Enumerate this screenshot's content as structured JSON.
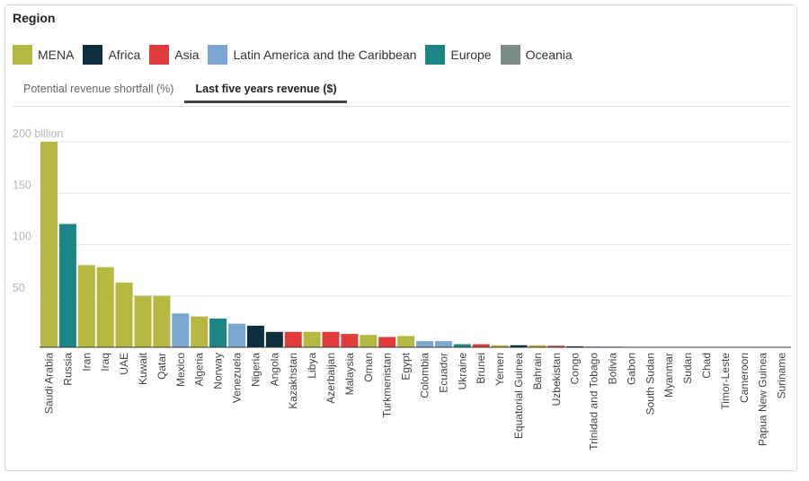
{
  "region_title": "Region",
  "legend": [
    {
      "name": "MENA",
      "color": "#b5b942"
    },
    {
      "name": "Africa",
      "color": "#0f2e3d"
    },
    {
      "name": "Asia",
      "color": "#e03c3c"
    },
    {
      "name": "Latin America and the Caribbean",
      "color": "#7ba6d1"
    },
    {
      "name": "Europe",
      "color": "#1c8585"
    },
    {
      "name": "Oceania",
      "color": "#7d8c86"
    }
  ],
  "tabs": [
    {
      "label": "Potential revenue shortfall (%)",
      "active": false
    },
    {
      "label": "Last five years revenue ($)",
      "active": true
    }
  ],
  "chart_data": {
    "type": "bar",
    "ylim": [
      0,
      200
    ],
    "yticks": [
      {
        "value": 200,
        "label": "200 billion"
      },
      {
        "value": 150,
        "label": "150"
      },
      {
        "value": 100,
        "label": "100"
      },
      {
        "value": 50,
        "label": "50"
      }
    ],
    "grid": true,
    "categories": [
      "Saudi Arabia",
      "Russia",
      "Iran",
      "Iraq",
      "UAE",
      "Kuwait",
      "Qatar",
      "Mexico",
      "Algeria",
      "Norway",
      "Venezuela",
      "Nigeria",
      "Angola",
      "Kazakhstan",
      "Libya",
      "Azerbaijan",
      "Malaysia",
      "Oman",
      "Turkmenistan",
      "Egypt",
      "Colombia",
      "Ecuador",
      "Ukraine",
      "Brunei",
      "Yemen",
      "Equatorial Guinea",
      "Bahrain",
      "Uzbekistan",
      "Congo",
      "Trinidad and Tobago",
      "Bolivia",
      "Gabon",
      "South Sudan",
      "Myanmar",
      "Sudan",
      "Chad",
      "Timor-Leste",
      "Cameroon",
      "Papua New Guinea",
      "Suriname"
    ],
    "values": [
      200,
      120,
      80,
      78,
      63,
      50,
      50,
      33,
      30,
      28,
      23,
      21,
      15,
      15,
      15,
      15,
      13,
      12,
      10,
      11,
      6,
      6,
      3,
      3,
      2,
      2,
      2,
      1.5,
      1,
      0.8,
      0.7,
      0,
      0,
      0,
      0,
      0,
      0,
      0,
      0,
      0
    ],
    "regions": [
      "MENA",
      "Europe",
      "MENA",
      "MENA",
      "MENA",
      "MENA",
      "MENA",
      "Latin America and the Caribbean",
      "MENA",
      "Europe",
      "Latin America and the Caribbean",
      "Africa",
      "Africa",
      "Asia",
      "MENA",
      "Asia",
      "Asia",
      "MENA",
      "Asia",
      "MENA",
      "Latin America and the Caribbean",
      "Latin America and the Caribbean",
      "Europe",
      "Asia",
      "MENA",
      "Africa",
      "MENA",
      "Asia",
      "Africa",
      "Latin America and the Caribbean",
      "Latin America and the Caribbean",
      "Africa",
      "Africa",
      "Asia",
      "Africa",
      "Africa",
      "Asia",
      "Africa",
      "Oceania",
      "Latin America and the Caribbean"
    ]
  }
}
